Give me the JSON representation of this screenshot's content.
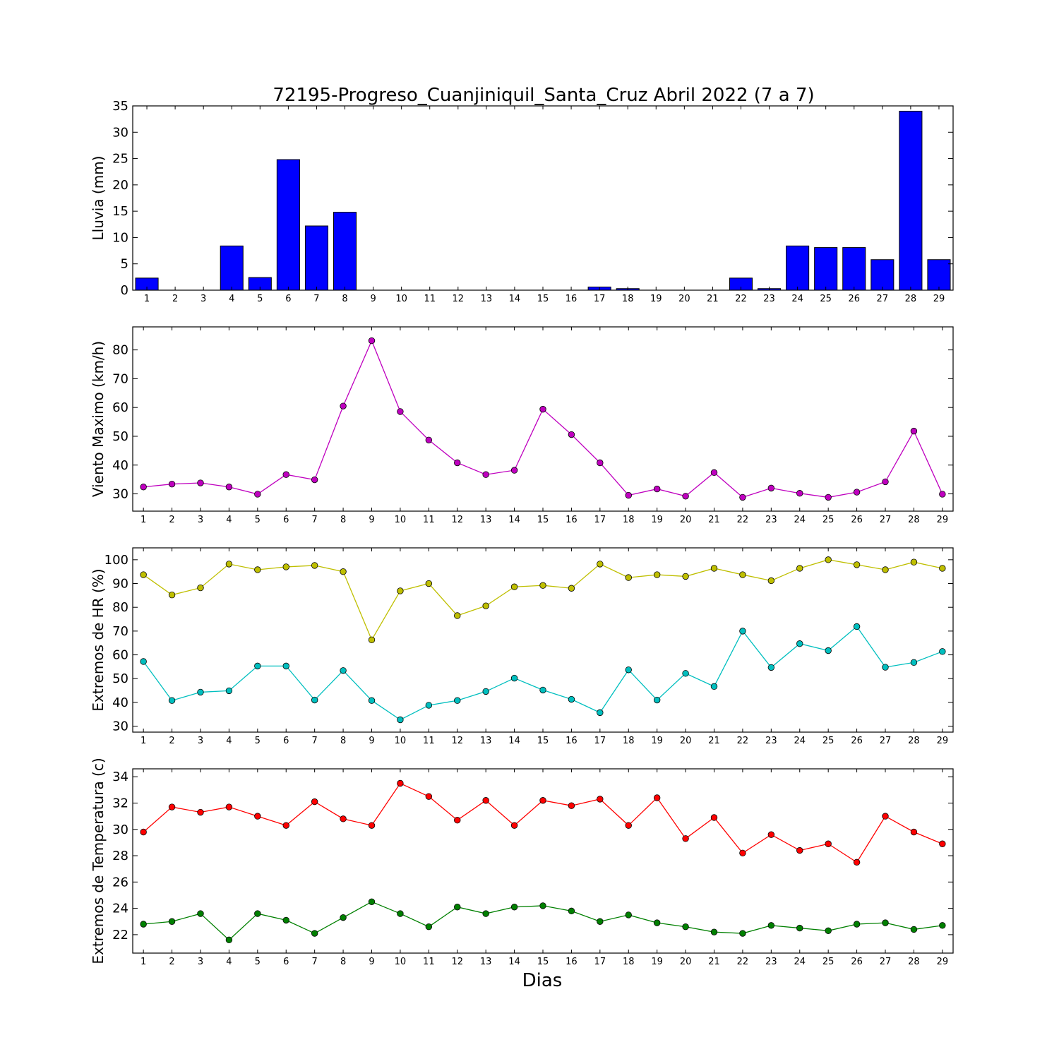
{
  "chart_data": [
    {
      "type": "bar",
      "title": "72195-Progreso_Cuanjiniquil_Santa_Cruz Abril 2022  (7 a 7)",
      "ylabel": "Lluvia (mm)",
      "xlabel": "",
      "categories": [
        "1",
        "2",
        "3",
        "4",
        "5",
        "6",
        "7",
        "8",
        "9",
        "10",
        "11",
        "12",
        "13",
        "14",
        "15",
        "16",
        "17",
        "18",
        "19",
        "20",
        "21",
        "22",
        "23",
        "24",
        "25",
        "26",
        "27",
        "28",
        "29"
      ],
      "series": [
        {
          "values": [
            2.3,
            0,
            0,
            8.4,
            2.4,
            24.8,
            12.2,
            14.8,
            0,
            0,
            0,
            0,
            0,
            0,
            0,
            0,
            0.6,
            0.3,
            0,
            0,
            0,
            2.3,
            0.3,
            8.4,
            8.1,
            8.1,
            5.8,
            34.0,
            5.8
          ],
          "color": "#0000ff"
        }
      ],
      "ylim": [
        0,
        35
      ],
      "yticks": [
        0,
        5,
        10,
        15,
        20,
        25,
        30,
        35
      ]
    },
    {
      "type": "line",
      "title": "",
      "ylabel": "Viento Maximo (km/h)",
      "xlabel": "",
      "categories": [
        "1",
        "2",
        "3",
        "4",
        "5",
        "6",
        "7",
        "8",
        "9",
        "10",
        "11",
        "12",
        "13",
        "14",
        "15",
        "16",
        "17",
        "18",
        "19",
        "20",
        "21",
        "22",
        "23",
        "24",
        "25",
        "26",
        "27",
        "28",
        "29"
      ],
      "series": [
        {
          "values": [
            32.4,
            33.4,
            33.8,
            32.4,
            29.9,
            36.7,
            34.9,
            60.5,
            83.2,
            58.6,
            48.7,
            40.8,
            36.7,
            38.2,
            59.4,
            50.6,
            40.8,
            29.5,
            31.7,
            29.2,
            37.4,
            28.8,
            32.0,
            30.2,
            28.8,
            30.6,
            34.2,
            51.8,
            29.9
          ],
          "color": "#bf00bf"
        }
      ],
      "ylim": [
        24,
        88
      ],
      "yticks": [
        30,
        40,
        50,
        60,
        70,
        80
      ]
    },
    {
      "type": "line",
      "title": "",
      "ylabel": "Extremos de HR (%)",
      "xlabel": "",
      "categories": [
        "1",
        "2",
        "3",
        "4",
        "5",
        "6",
        "7",
        "8",
        "9",
        "10",
        "11",
        "12",
        "13",
        "14",
        "15",
        "16",
        "17",
        "18",
        "19",
        "20",
        "21",
        "22",
        "23",
        "24",
        "25",
        "26",
        "27",
        "28",
        "29"
      ],
      "series": [
        {
          "values": [
            93.7,
            85.2,
            88.2,
            98.2,
            95.8,
            97.0,
            97.6,
            95.0,
            66.3,
            86.9,
            90.0,
            76.5,
            80.6,
            88.6,
            89.2,
            88.0,
            98.2,
            92.5,
            93.7,
            93.0,
            96.4,
            93.7,
            91.2,
            96.4,
            100.0,
            97.9,
            95.8,
            99.0,
            96.4
          ],
          "color": "#bfbf00"
        },
        {
          "values": [
            57.2,
            40.8,
            44.3,
            44.9,
            55.3,
            55.3,
            41.0,
            53.4,
            40.8,
            32.7,
            38.8,
            40.8,
            44.6,
            50.2,
            45.2,
            41.3,
            35.7,
            53.7,
            41.0,
            52.2,
            46.7,
            70.0,
            54.7,
            64.7,
            61.8,
            71.9,
            54.8,
            56.8,
            61.4
          ],
          "color": "#00bfbf"
        }
      ],
      "ylim": [
        27.5,
        105
      ],
      "yticks": [
        30,
        40,
        50,
        60,
        70,
        80,
        90,
        100
      ]
    },
    {
      "type": "line",
      "title": "",
      "ylabel": "Extremos de Temperatura (c)",
      "xlabel": "Dias",
      "categories": [
        "1",
        "2",
        "3",
        "4",
        "5",
        "6",
        "7",
        "8",
        "9",
        "10",
        "11",
        "12",
        "13",
        "14",
        "15",
        "16",
        "17",
        "18",
        "19",
        "20",
        "21",
        "22",
        "23",
        "24",
        "25",
        "26",
        "27",
        "28",
        "29"
      ],
      "series": [
        {
          "values": [
            29.8,
            31.7,
            31.3,
            31.7,
            31.0,
            30.3,
            32.1,
            30.8,
            30.3,
            33.5,
            32.5,
            30.7,
            32.2,
            30.3,
            32.2,
            31.8,
            32.3,
            30.3,
            32.4,
            29.3,
            30.9,
            28.2,
            29.6,
            28.4,
            28.9,
            27.5,
            31.0,
            29.8,
            28.9
          ],
          "color": "#ff0000"
        },
        {
          "values": [
            22.8,
            23.0,
            23.6,
            21.6,
            23.6,
            23.1,
            22.1,
            23.3,
            24.5,
            23.6,
            22.6,
            24.1,
            23.6,
            24.1,
            24.2,
            23.8,
            23.0,
            23.5,
            22.9,
            22.6,
            22.2,
            22.1,
            22.7,
            22.5,
            22.3,
            22.8,
            22.9,
            22.4,
            22.7
          ],
          "color": "#008000"
        }
      ],
      "ylim": [
        20.6,
        34.6
      ],
      "yticks": [
        22,
        24,
        26,
        28,
        30,
        32,
        34
      ]
    }
  ]
}
